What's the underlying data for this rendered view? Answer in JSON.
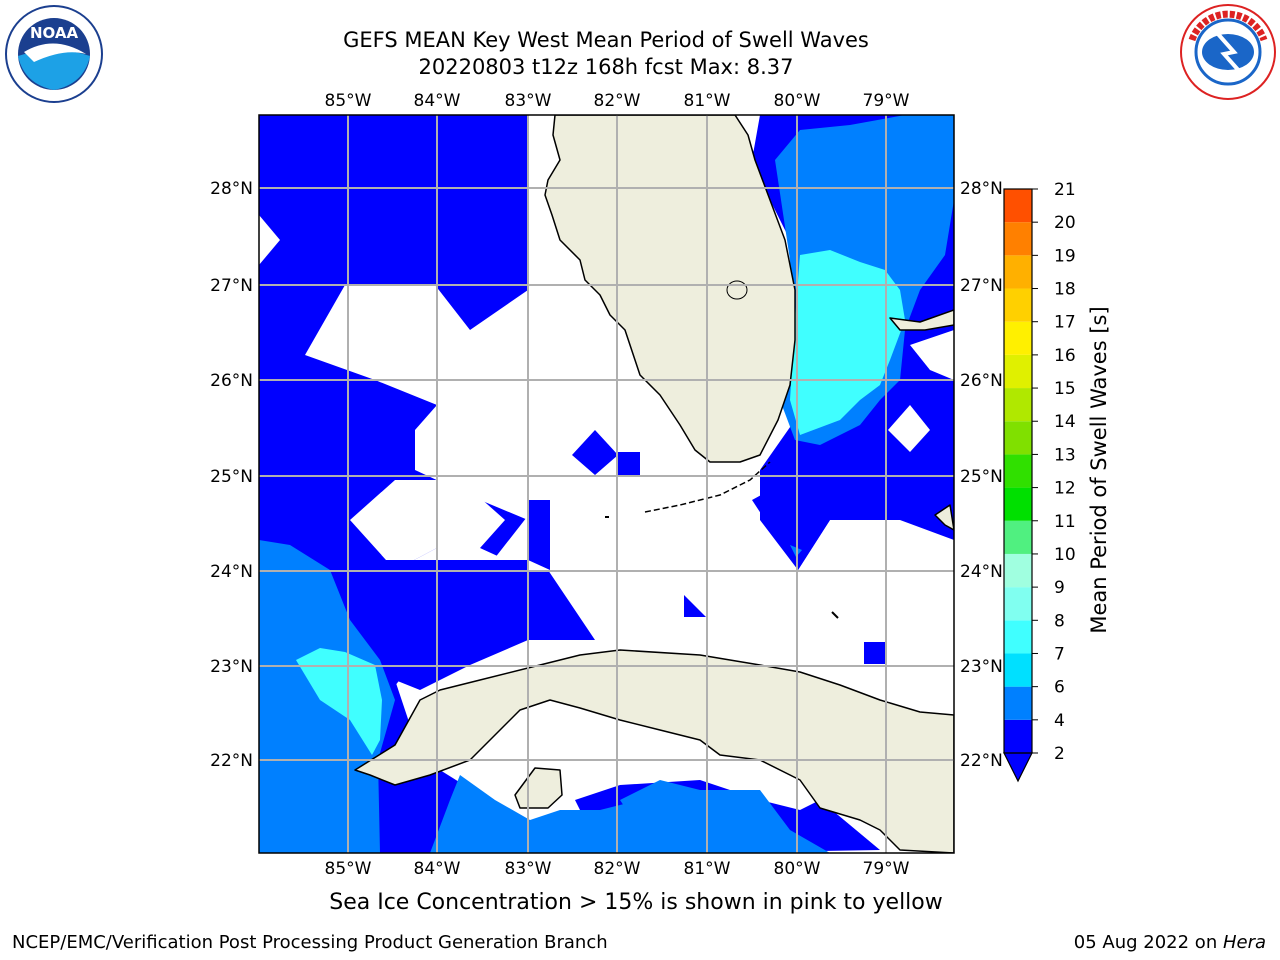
{
  "header": {
    "title_line1": "GEFS MEAN Key West Mean Period of Swell Waves",
    "title_line2": "20220803 t12z 168h fcst   Max: 8.37"
  },
  "logos": {
    "left": {
      "name": "NOAA",
      "ring_text": "NATIONAL OCEANIC AND ATMOSPHERIC ADMINISTRATION · U.S. DEPARTMENT OF COMMERCE"
    },
    "right": {
      "name": "NATIONAL WEATHER SERVICE"
    }
  },
  "map": {
    "lon_labels": [
      "85°W",
      "84°W",
      "83°W",
      "82°W",
      "81°W",
      "80°W",
      "79°W"
    ],
    "lat_labels": [
      "28°N",
      "27°N",
      "26°N",
      "25°N",
      "24°N",
      "23°N",
      "22°N"
    ],
    "colors": {
      "land": "#EEEEDD",
      "deep_blue": "#0000FF",
      "mid_blue": "#0080FF",
      "cyan": "#40FFFF",
      "grid": "#B0B0B0"
    }
  },
  "colorbar": {
    "label": "Mean Period of Swell Waves [s]",
    "ticks": [
      "2",
      "4",
      "6",
      "7",
      "8",
      "9",
      "10",
      "11",
      "12",
      "13",
      "14",
      "15",
      "16",
      "17",
      "18",
      "19",
      "20",
      "21"
    ],
    "colors": [
      "#0000FF",
      "#0080FF",
      "#00E0FF",
      "#40FFFF",
      "#80FFF0",
      "#A0FFE0",
      "#50F080",
      "#00E000",
      "#30E000",
      "#80E000",
      "#B0E800",
      "#E0F000",
      "#FFF000",
      "#FFD000",
      "#FFB000",
      "#FF8000",
      "#FF5000",
      "#FF2000"
    ]
  },
  "footer": {
    "note": "Sea Ice Concentration > 15% is shown in pink to yellow",
    "left": "NCEP/EMC/Verification Post Processing Product Generation Branch",
    "right_prefix": "05 Aug 2022 on ",
    "right_host": "Hera"
  }
}
